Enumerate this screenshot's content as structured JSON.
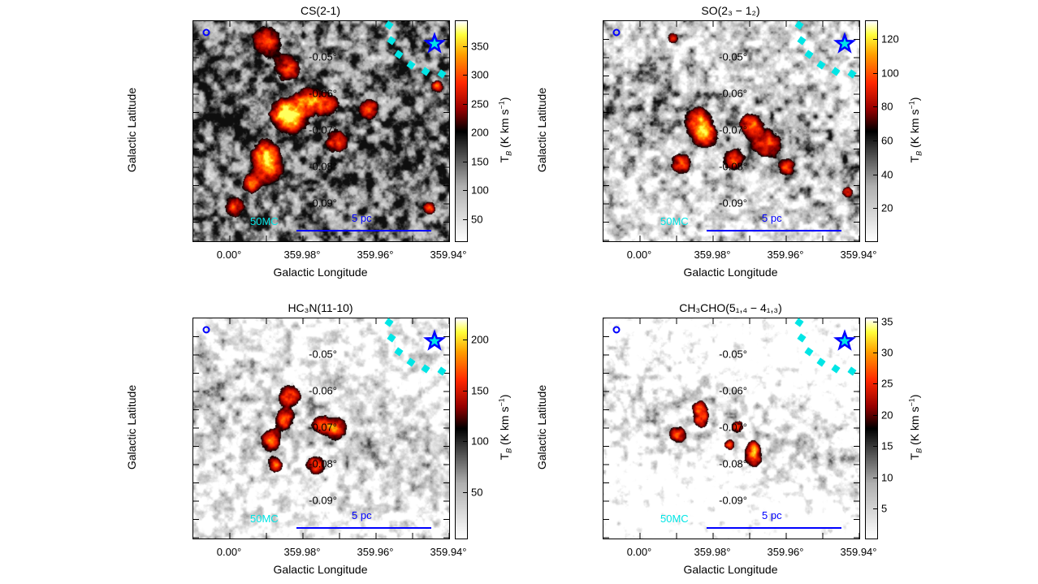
{
  "chart_data": [
    {
      "type": "heatmap",
      "title": "CS(2-1)",
      "xlabel": "Galactic Longitude",
      "ylabel": "Galactic Latitude",
      "xlim": [
        "0.01°",
        "359.94°"
      ],
      "ylim": [
        -0.04,
        -0.1
      ],
      "xticks": [
        "0.00°",
        "359.98°",
        "359.96°",
        "359.94°"
      ],
      "yticks": [
        "-0.05°",
        "-0.06°",
        "-0.07°",
        "-0.08°",
        "-0.09°"
      ],
      "colorbar": {
        "range": [
          13,
          395
        ],
        "ticks": [
          50,
          100,
          150,
          200,
          250,
          300,
          350
        ],
        "label": {
          "symbol": "T",
          "subscript": "B",
          "unit": " (K km s",
          "exponent": "−1",
          "close": ")"
        }
      },
      "colormap": "white-gray-black-red-yellow-white"
    },
    {
      "type": "heatmap",
      "title": "SO(2₃ − 1₂)",
      "xlabel": "Galactic Longitude",
      "ylabel": "Galactic Latitude",
      "xlim": [
        "0.01°",
        "359.94°"
      ],
      "ylim": [
        -0.04,
        -0.1
      ],
      "xticks": [
        "0.00°",
        "359.98°",
        "359.96°",
        "359.94°"
      ],
      "yticks": [
        "-0.05°",
        "-0.06°",
        "-0.07°",
        "-0.08°",
        "-0.09°"
      ],
      "colorbar": {
        "range": [
          1,
          131
        ],
        "ticks": [
          20,
          40,
          60,
          80,
          100,
          120
        ],
        "label": {
          "symbol": "T",
          "subscript": "B",
          "unit": " (K km s",
          "exponent": "−1",
          "close": ")"
        }
      },
      "colormap": "white-gray-black-red-yellow-white"
    },
    {
      "type": "heatmap",
      "title": "HC₃N(11-10)",
      "xlabel": "Galactic Longitude",
      "ylabel": "Galactic Latitude",
      "xlim": [
        "0.01°",
        "359.94°"
      ],
      "ylim": [
        -0.04,
        -0.1
      ],
      "xticks": [
        "0.00°",
        "359.98°",
        "359.96°",
        "359.94°"
      ],
      "yticks": [
        "-0.05°",
        "-0.06°",
        "-0.07°",
        "-0.08°",
        "-0.09°"
      ],
      "colorbar": {
        "range": [
          5,
          222
        ],
        "ticks": [
          50,
          100,
          150,
          200
        ],
        "label": {
          "symbol": "T",
          "subscript": "B",
          "unit": " (K km s",
          "exponent": "−1",
          "close": ")"
        }
      },
      "colormap": "white-gray-black-red-yellow-white"
    },
    {
      "type": "heatmap",
      "title": "CH₃CHO(5₁,₄ − 4₁,₃)",
      "xlabel": "Galactic Longitude",
      "ylabel": "Galactic Latitude",
      "xlim": [
        "0.01°",
        "359.94°"
      ],
      "ylim": [
        -0.04,
        -0.1
      ],
      "xticks": [
        "0.00°",
        "359.98°",
        "359.96°",
        "359.94°"
      ],
      "yticks": [
        "-0.05°",
        "-0.06°",
        "-0.07°",
        "-0.08°",
        "-0.09°"
      ],
      "colorbar": {
        "range": [
          0.3,
          35.6
        ],
        "ticks": [
          5,
          10,
          15,
          20,
          25,
          30,
          35
        ],
        "label": {
          "symbol": "T",
          "subscript": "B",
          "unit": " (K km s",
          "exponent": "−1",
          "close": ")"
        }
      },
      "colormap": "white-gray-black-red-yellow-white"
    }
  ],
  "annotations": {
    "cloud_label": "50MC",
    "cloud_label_color": "#00e5e5",
    "scale_bar_label": "5 pc",
    "scale_bar_color": "#0000ff",
    "beam_color": "#0000ff",
    "star_color": "#0000ff",
    "star_fill": "#00e5e5",
    "arc_color": "#00e5e5",
    "star_position": {
      "lon": "359.944°",
      "lat": -0.046
    }
  }
}
